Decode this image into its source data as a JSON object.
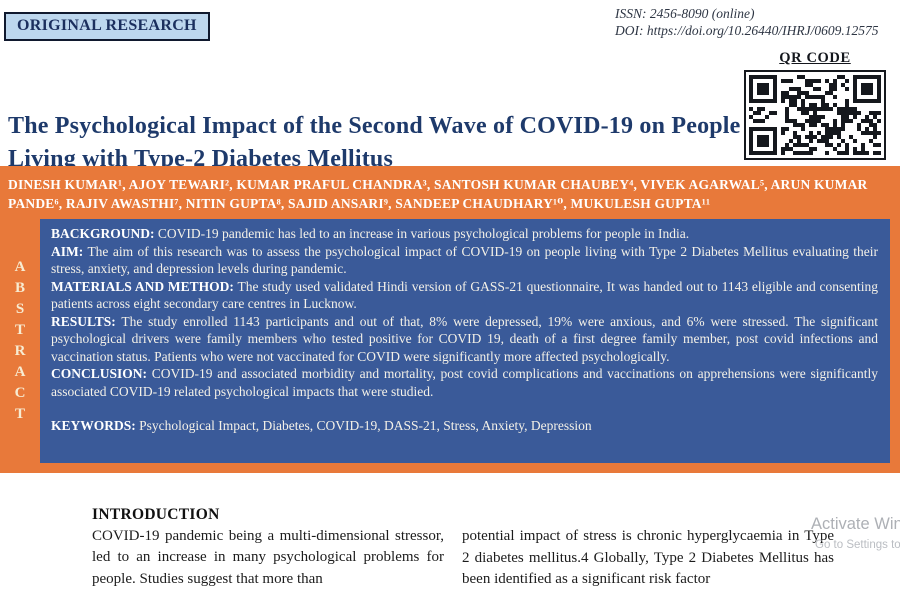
{
  "badge": {
    "label": "ORIGINAL RESEARCH"
  },
  "masthead": {
    "issn": "ISSN: 2456-8090 (online)",
    "doi": "DOI: https://doi.org/10.26440/IHRJ/0609.12575"
  },
  "qr": {
    "label": "QR CODE"
  },
  "title": "The Psychological Impact of the Second Wave of COVID-19 on People Living with Type-2 Diabetes Mellitus",
  "authors": "DINESH KUMAR¹, AJOY TEWARI², KUMAR PRAFUL CHANDRA³, SANTOSH KUMAR CHAUBEY⁴, VIVEK AGARWAL⁵, ARUN KUMAR PANDE⁶, RAJIV AWASTHI⁷, NITIN GUPTA⁸, SAJID ANSARI⁹, SANDEEP CHAUDHARY¹⁰, MUKULESH GUPTA¹¹",
  "abstract": {
    "vertical_label": "ABSTRACT",
    "sections": [
      {
        "label": "BACKGROUND:",
        "text": "COVID-19 pandemic has led to an increase in various psychological problems for people in India."
      },
      {
        "label": "AIM:",
        "text": "The aim of this research was to assess the psychological impact of COVID-19 on people living with Type 2 Diabetes Mellitus evaluating their stress, anxiety, and depression levels during pandemic."
      },
      {
        "label": "MATERIALS AND METHOD:",
        "text": "The study used validated Hindi version of GASS-21 questionnaire, It was handed out to 1143 eligible and consenting patients across eight secondary care centres in Lucknow."
      },
      {
        "label": "RESULTS:",
        "text": "The study enrolled 1143 participants and out of that, 8% were depressed, 19% were anxious, and 6% were stressed. The significant psychological drivers were family members who tested positive for COVID 19, death of a first degree family member, post covid infections and vaccination status. Patients who were not vaccinated for COVID were significantly more affected psychologically."
      },
      {
        "label": "CONCLUSION:",
        "text": "COVID-19 and associated morbidity and mortality, post covid complications and vaccinations on apprehensions were significantly associated COVID-19 related psychological impacts that were studied."
      }
    ],
    "keywords_label": "KEYWORDS:",
    "keywords": "Psychological Impact, Diabetes, COVID-19, DASS-21, Stress, Anxiety, Depression"
  },
  "introduction": {
    "heading": "INTRODUCTION",
    "column1": "COVID-19 pandemic being a multi-dimensional stressor, led to an increase in many psychological problems for people. Studies suggest that more than",
    "column2": "potential impact of stress is chronic hyperglycaemia in Type 2 diabetes mellitus.4 Globally, Type 2 Diabetes Mellitus has been identified as a significant risk factor"
  },
  "watermark": {
    "line1": "Activate Win",
    "line2": "Go to Settings to"
  },
  "colors": {
    "orange": "#E8793A",
    "abstract_blue": "#3A5A99",
    "title_navy": "#1E3A6B",
    "badge_bg": "#BDD7EE",
    "vertical_letters": "#F7ECD2"
  }
}
